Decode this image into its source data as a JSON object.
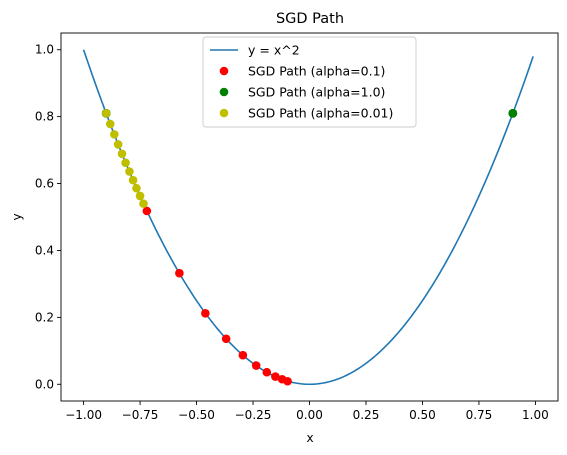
{
  "chart_data": {
    "type": "scatter",
    "title": "SGD Path",
    "xlabel": "x",
    "ylabel": "y",
    "xlim": [
      -1.1,
      1.1
    ],
    "ylim": [
      -0.05,
      1.05
    ],
    "xticks": [
      -1.0,
      -0.75,
      -0.5,
      -0.25,
      0.0,
      0.25,
      0.5,
      0.75,
      1.0
    ],
    "xtick_labels": [
      "−1.00",
      "−0.75",
      "−0.50",
      "−0.25",
      "0.00",
      "0.25",
      "0.50",
      "0.75",
      "1.00"
    ],
    "yticks": [
      0.0,
      0.2,
      0.4,
      0.6,
      0.8,
      1.0
    ],
    "ytick_labels": [
      "0.0",
      "0.2",
      "0.4",
      "0.6",
      "0.8",
      "1.0"
    ],
    "grid": false,
    "legend_position": "top-center",
    "line": {
      "name": "y = x^2",
      "color": "#1f77b4",
      "x_range": [
        -1.0,
        0.99
      ]
    },
    "series": [
      {
        "name": "SGD Path (alpha=0.1)",
        "color": "#ff0000",
        "x": [
          -0.9,
          -0.72,
          -0.576,
          -0.461,
          -0.369,
          -0.295,
          -0.236,
          -0.189,
          -0.151,
          -0.121,
          -0.097
        ],
        "y": [
          0.81,
          0.518,
          0.332,
          0.212,
          0.136,
          0.087,
          0.056,
          0.036,
          0.023,
          0.015,
          0.009
        ]
      },
      {
        "name": "SGD Path (alpha=1.0)",
        "color": "#008000",
        "x": [
          -0.9,
          0.9,
          -0.9,
          0.9,
          -0.9,
          0.9,
          -0.9,
          0.9,
          -0.9,
          0.9,
          -0.9
        ],
        "y": [
          0.81,
          0.81,
          0.81,
          0.81,
          0.81,
          0.81,
          0.81,
          0.81,
          0.81,
          0.81,
          0.81
        ]
      },
      {
        "name": "SGD Path (alpha=0.01)",
        "color": "#bfbf00",
        "x": [
          -0.9,
          -0.882,
          -0.864,
          -0.847,
          -0.83,
          -0.814,
          -0.797,
          -0.781,
          -0.766,
          -0.75,
          -0.735
        ],
        "y": [
          0.81,
          0.778,
          0.747,
          0.717,
          0.689,
          0.662,
          0.636,
          0.61,
          0.586,
          0.563,
          0.54
        ]
      }
    ]
  }
}
